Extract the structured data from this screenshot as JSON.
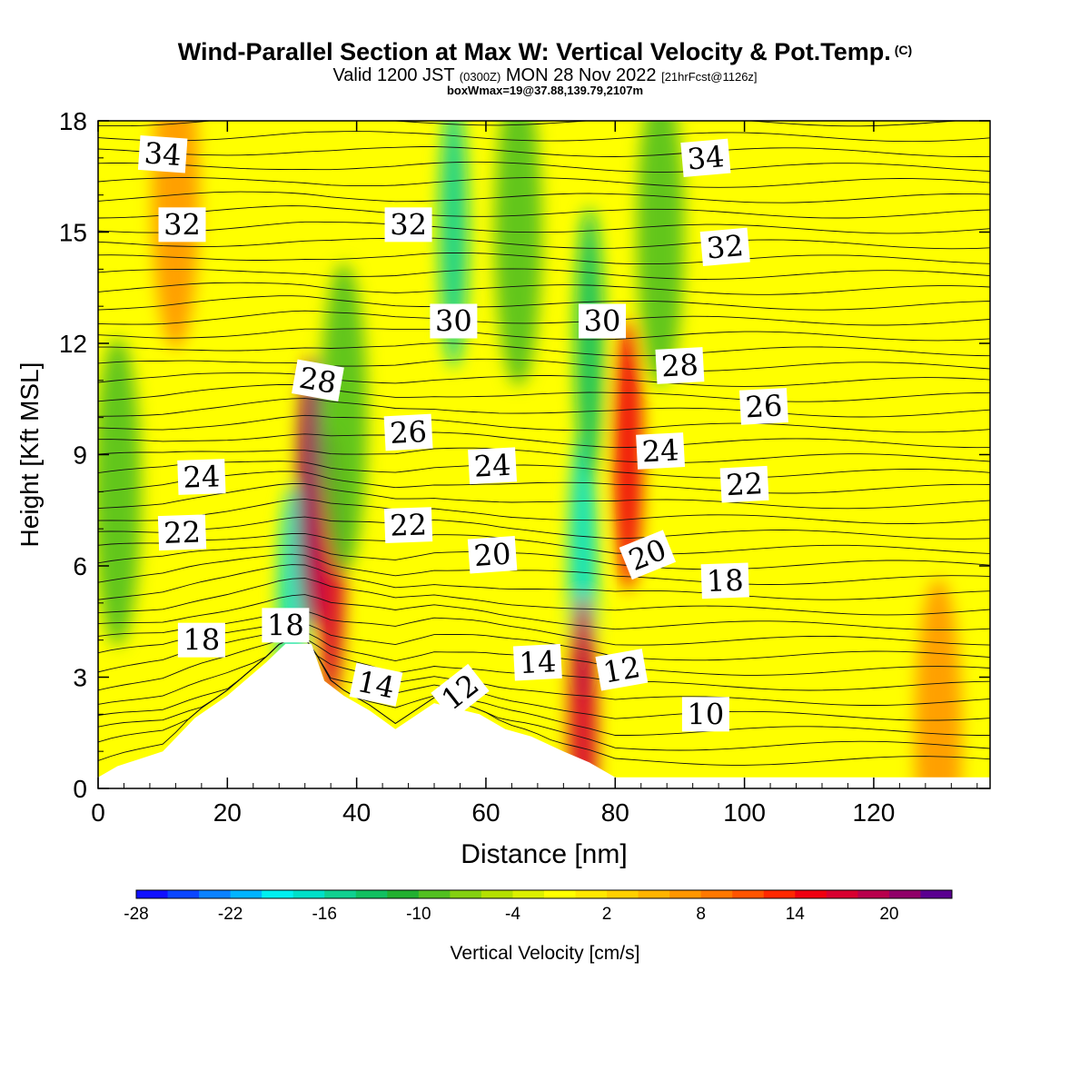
{
  "title": "Wind-Parallel Section at Max W: Vertical Velocity & Pot.Temp.",
  "copyright_mark": "(C)",
  "subtitle": {
    "valid": "Valid 1200 JST",
    "utc": "(0300Z)",
    "date": "MON 28 Nov 2022",
    "forecast": "[21hrFcst@1126z]"
  },
  "box_info": "boxWmax=19@37.88,139.79,2107m",
  "chart_data": {
    "type": "heatmap",
    "xlabel": "Distance [nm]",
    "ylabel": "Height [Kft MSL]",
    "xlim": [
      0,
      138
    ],
    "ylim": [
      0,
      18
    ],
    "x_ticks": [
      0,
      20,
      40,
      60,
      80,
      100,
      120
    ],
    "y_ticks": [
      0,
      3,
      6,
      9,
      12,
      15,
      18
    ],
    "colorbar": {
      "label": "Vertical Velocity [cm/s]",
      "tick_labels": [
        -28,
        -22,
        -16,
        -10,
        -4,
        2,
        8,
        14,
        20
      ],
      "colors": [
        "#1010ff",
        "#0a46ff",
        "#0a82ff",
        "#00b4ff",
        "#00f0f0",
        "#00e0c8",
        "#10d090",
        "#12c060",
        "#22b030",
        "#52c020",
        "#84d010",
        "#b4e000",
        "#dcf000",
        "#ffff00",
        "#ffe800",
        "#ffd000",
        "#ffb400",
        "#ff9600",
        "#ff7800",
        "#ff5400",
        "#ff2800",
        "#f00010",
        "#d80030",
        "#b8004c",
        "#900068",
        "#5a0090"
      ]
    },
    "vertical_velocity_features": [
      {
        "x": 30,
        "z": 4.5,
        "w": -18
      },
      {
        "x": 33,
        "z": 8.0,
        "w": 20
      },
      {
        "x": 36,
        "z": 6.0,
        "w": 15
      },
      {
        "x": 38,
        "z": 10.0,
        "w": -10
      },
      {
        "x": 55,
        "z": 15.0,
        "w": -16
      },
      {
        "x": 65,
        "z": 15.0,
        "w": -10
      },
      {
        "x": 75,
        "z": 6.0,
        "w": -18
      },
      {
        "x": 76,
        "z": 12.0,
        "w": -14
      },
      {
        "x": 75,
        "z": 1.5,
        "w": 15
      },
      {
        "x": 82,
        "z": 9.0,
        "w": 14
      },
      {
        "x": 87,
        "z": 15.0,
        "w": -10
      },
      {
        "x": 3,
        "z": 8.0,
        "w": -10
      },
      {
        "x": 12,
        "z": 16.0,
        "w": 6
      },
      {
        "x": 130,
        "z": 1.5,
        "w": 6
      }
    ],
    "terrain_profile": [
      {
        "x": 0,
        "z": 0.3
      },
      {
        "x": 3,
        "z": 0.6
      },
      {
        "x": 10,
        "z": 1.0
      },
      {
        "x": 15,
        "z": 1.9
      },
      {
        "x": 20,
        "z": 2.5
      },
      {
        "x": 26,
        "z": 3.4
      },
      {
        "x": 29,
        "z": 3.9
      },
      {
        "x": 33,
        "z": 3.9
      },
      {
        "x": 35,
        "z": 2.9
      },
      {
        "x": 38,
        "z": 2.5
      },
      {
        "x": 42,
        "z": 2.1
      },
      {
        "x": 46,
        "z": 1.6
      },
      {
        "x": 52,
        "z": 2.3
      },
      {
        "x": 59,
        "z": 2.0
      },
      {
        "x": 63,
        "z": 1.6
      },
      {
        "x": 67,
        "z": 1.4
      },
      {
        "x": 72,
        "z": 1.0
      },
      {
        "x": 76,
        "z": 0.7
      },
      {
        "x": 80,
        "z": 0.3
      },
      {
        "x": 138,
        "z": 0.3
      }
    ],
    "potential_temperature_labels": [
      {
        "value": "34",
        "x": 10,
        "z": 17.1,
        "rot": 4
      },
      {
        "value": "32",
        "x": 13,
        "z": 15.2,
        "rot": 0
      },
      {
        "value": "24",
        "x": 16,
        "z": 8.4,
        "rot": -2
      },
      {
        "value": "22",
        "x": 13,
        "z": 6.9,
        "rot": -2
      },
      {
        "value": "18",
        "x": 16,
        "z": 4.0,
        "rot": 0
      },
      {
        "value": "18",
        "x": 29,
        "z": 4.4,
        "rot": 0
      },
      {
        "value": "28",
        "x": 34,
        "z": 11.0,
        "rot": 10
      },
      {
        "value": "32",
        "x": 48,
        "z": 15.2,
        "rot": 0
      },
      {
        "value": "30",
        "x": 55,
        "z": 12.6,
        "rot": 0
      },
      {
        "value": "26",
        "x": 48,
        "z": 9.6,
        "rot": -3
      },
      {
        "value": "22",
        "x": 48,
        "z": 7.1,
        "rot": -2
      },
      {
        "value": "14",
        "x": 43,
        "z": 2.8,
        "rot": 12
      },
      {
        "value": "12",
        "x": 56,
        "z": 2.6,
        "rot": -38
      },
      {
        "value": "24",
        "x": 61,
        "z": 8.7,
        "rot": -3
      },
      {
        "value": "20",
        "x": 61,
        "z": 6.3,
        "rot": -4
      },
      {
        "value": "14",
        "x": 68,
        "z": 3.4,
        "rot": -3
      },
      {
        "value": "30",
        "x": 78,
        "z": 12.6,
        "rot": 0
      },
      {
        "value": "28",
        "x": 90,
        "z": 11.4,
        "rot": -3
      },
      {
        "value": "24",
        "x": 87,
        "z": 9.1,
        "rot": -3
      },
      {
        "value": "20",
        "x": 85,
        "z": 6.3,
        "rot": -22
      },
      {
        "value": "12",
        "x": 81,
        "z": 3.2,
        "rot": -10
      },
      {
        "value": "34",
        "x": 94,
        "z": 17.0,
        "rot": -5
      },
      {
        "value": "32",
        "x": 97,
        "z": 14.6,
        "rot": -5
      },
      {
        "value": "26",
        "x": 103,
        "z": 10.3,
        "rot": -3
      },
      {
        "value": "22",
        "x": 100,
        "z": 8.2,
        "rot": -3
      },
      {
        "value": "18",
        "x": 97,
        "z": 5.6,
        "rot": -2
      },
      {
        "value": "10",
        "x": 94,
        "z": 2.0,
        "rot": 0
      }
    ]
  }
}
